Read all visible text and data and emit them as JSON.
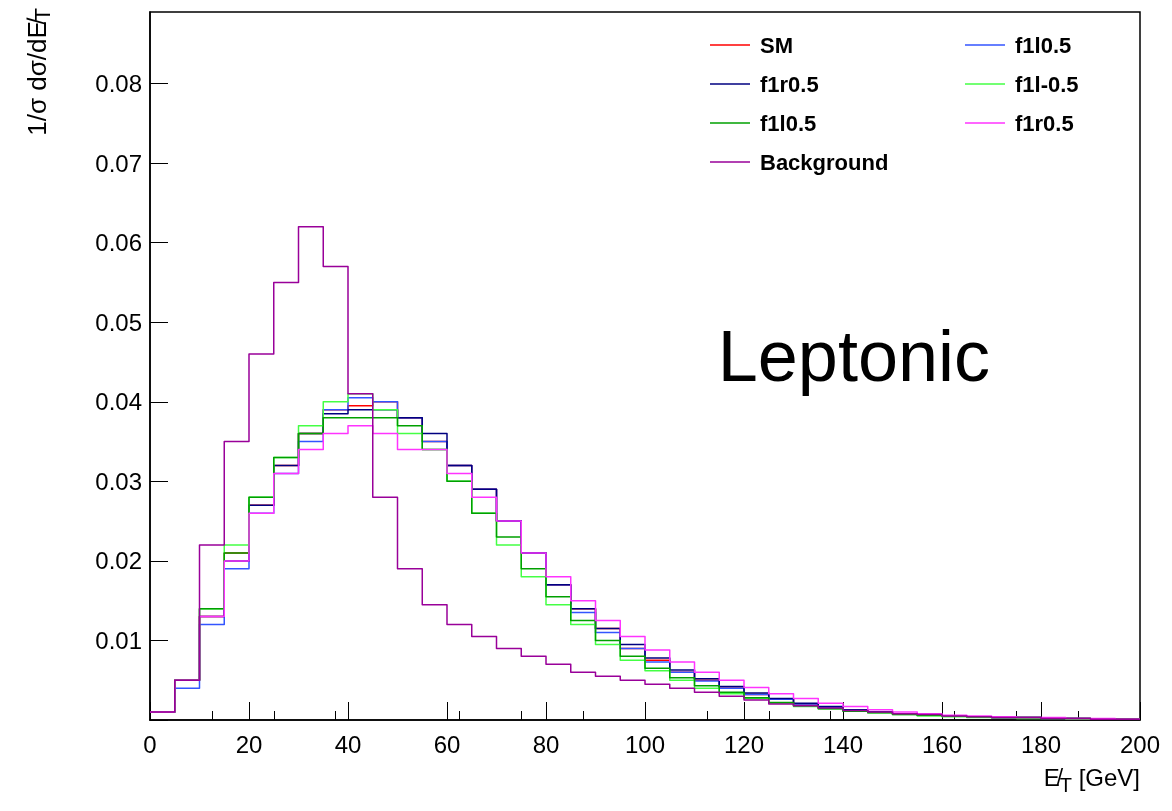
{
  "chart_data": {
    "type": "histogram",
    "xlabel": "E̸$_{T}$ [GeV]",
    "ylabel": "1/σ dσ/dE̸$_{T}$",
    "annotations": [
      "Leptonic"
    ],
    "bins": [
      0,
      5,
      10,
      15,
      20,
      25,
      30,
      35,
      40,
      45,
      50,
      55,
      60,
      65,
      70,
      75,
      80,
      85,
      90,
      95,
      100,
      105,
      110,
      115,
      120,
      125,
      130,
      135,
      140,
      145,
      150,
      155,
      160,
      165,
      170,
      175,
      180,
      185,
      190,
      195,
      200
    ],
    "xlim": [
      0,
      200
    ],
    "xticks": [
      0,
      20,
      40,
      60,
      80,
      100,
      120,
      140,
      160,
      180,
      200
    ],
    "ylim": [
      0,
      0.089
    ],
    "yticks": [
      {
        "value": 0,
        "label": null
      },
      0.01,
      0.02,
      0.03,
      0.04,
      0.05,
      0.06,
      0.07,
      0.08
    ],
    "grid": false,
    "legend": "top right",
    "series": [
      {
        "name": "SM",
        "color": "#ff0000",
        "values": [
          0.001,
          0.005,
          0.013,
          0.021,
          0.027,
          0.032,
          0.036,
          0.039,
          0.0395,
          0.04,
          0.038,
          0.035,
          0.032,
          0.029,
          0.025,
          0.021,
          0.017,
          0.014,
          0.0115,
          0.009,
          0.0075,
          0.006,
          0.005,
          0.004,
          0.0032,
          0.0026,
          0.002,
          0.0016,
          0.0013,
          0.001,
          0.0008,
          0.0006,
          0.0005,
          0.0004,
          0.0003,
          0.0003,
          0.0002,
          0.0002,
          0.0001,
          0.0001
        ]
      },
      {
        "name": "f1l0.5",
        "color": "#3355ff",
        "values": [
          0.001,
          0.004,
          0.012,
          0.019,
          0.026,
          0.031,
          0.035,
          0.039,
          0.0405,
          0.04,
          0.038,
          0.035,
          0.032,
          0.029,
          0.025,
          0.021,
          0.017,
          0.0135,
          0.011,
          0.009,
          0.0073,
          0.006,
          0.0049,
          0.004,
          0.0032,
          0.0026,
          0.002,
          0.0016,
          0.0013,
          0.001,
          0.0008,
          0.0006,
          0.0005,
          0.0004,
          0.0003,
          0.0003,
          0.0002,
          0.0002,
          0.0001,
          0.0001
        ]
      },
      {
        "name": "f1r0.5",
        "color": "#000080",
        "values": [
          0.001,
          0.005,
          0.013,
          0.02,
          0.027,
          0.032,
          0.036,
          0.0385,
          0.039,
          0.039,
          0.038,
          0.036,
          0.032,
          0.029,
          0.025,
          0.021,
          0.017,
          0.014,
          0.0115,
          0.0095,
          0.0078,
          0.0063,
          0.0052,
          0.0042,
          0.0034,
          0.0027,
          0.0021,
          0.0017,
          0.0013,
          0.001,
          0.0008,
          0.0006,
          0.0005,
          0.0004,
          0.0003,
          0.0003,
          0.0002,
          0.0002,
          0.0001,
          0.0001
        ]
      },
      {
        "name": "f1l-0.5",
        "color": "#44ff44",
        "values": [
          0.001,
          0.005,
          0.014,
          0.022,
          0.028,
          0.033,
          0.037,
          0.04,
          0.041,
          0.039,
          0.036,
          0.034,
          0.03,
          0.026,
          0.022,
          0.018,
          0.0145,
          0.012,
          0.0095,
          0.0075,
          0.0062,
          0.005,
          0.004,
          0.0033,
          0.0027,
          0.0021,
          0.0017,
          0.0014,
          0.0011,
          0.0009,
          0.0007,
          0.0005,
          0.0004,
          0.0003,
          0.0003,
          0.0002,
          0.0002,
          0.0001,
          0.0001,
          0.0001
        ]
      },
      {
        "name": "f1l0.5",
        "color": "#00a000",
        "values": [
          0.001,
          0.005,
          0.014,
          0.021,
          0.028,
          0.033,
          0.036,
          0.038,
          0.038,
          0.038,
          0.037,
          0.034,
          0.03,
          0.026,
          0.023,
          0.019,
          0.0155,
          0.0125,
          0.01,
          0.008,
          0.0065,
          0.0053,
          0.0043,
          0.0035,
          0.0028,
          0.0022,
          0.0018,
          0.0014,
          0.0011,
          0.0009,
          0.0007,
          0.0006,
          0.0005,
          0.0004,
          0.0003,
          0.0003,
          0.0002,
          0.0002,
          0.0001,
          0.0001
        ]
      },
      {
        "name": "f1r0.5",
        "color": "#ff33ff",
        "values": [
          0.001,
          0.005,
          0.013,
          0.02,
          0.026,
          0.031,
          0.034,
          0.036,
          0.037,
          0.036,
          0.034,
          0.034,
          0.031,
          0.028,
          0.025,
          0.021,
          0.018,
          0.015,
          0.0125,
          0.0105,
          0.0088,
          0.0073,
          0.006,
          0.005,
          0.0041,
          0.0033,
          0.0027,
          0.0021,
          0.0017,
          0.0013,
          0.001,
          0.0008,
          0.0006,
          0.0005,
          0.0004,
          0.0003,
          0.0003,
          0.0002,
          0.0002,
          0.0001
        ]
      },
      {
        "name": "Background",
        "color": "#990099",
        "values": [
          0.001,
          0.005,
          0.022,
          0.035,
          0.046,
          0.055,
          0.062,
          0.057,
          0.041,
          0.028,
          0.019,
          0.0145,
          0.012,
          0.0105,
          0.009,
          0.008,
          0.007,
          0.006,
          0.0055,
          0.005,
          0.0045,
          0.004,
          0.0035,
          0.003,
          0.0025,
          0.002,
          0.0018,
          0.0015,
          0.0012,
          0.001,
          0.0008,
          0.0007,
          0.0005,
          0.0004,
          0.0003,
          0.0003,
          0.0002,
          0.0002,
          0.0001,
          0.0001
        ]
      }
    ]
  }
}
